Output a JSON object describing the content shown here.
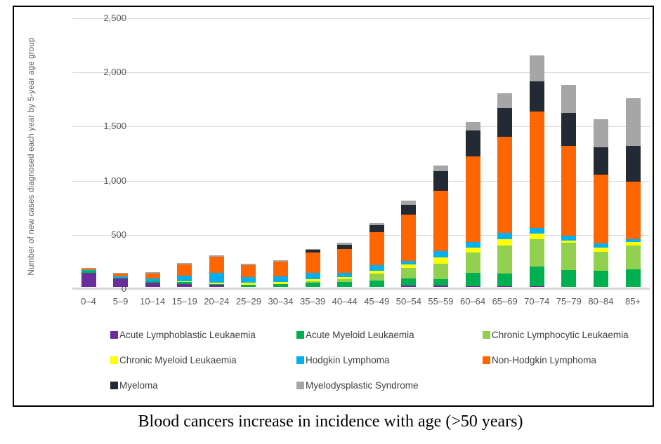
{
  "chart": {
    "y_axis_title": "Number of new cases diagnosed each year by 5-year age group",
    "y_ticks": [
      "0",
      "500",
      "1,000",
      "1,500",
      "2,000",
      "2,500"
    ],
    "caption": "Blood cancers increase in incidence with age (>50 years)"
  },
  "chart_data": {
    "type": "bar",
    "stacked": true,
    "title": "",
    "xlabel": "",
    "ylabel": "Number of new cases diagnosed each year by 5-year age group",
    "ylim": [
      0,
      2500
    ],
    "y_tick_step": 500,
    "grid": true,
    "legend_position": "bottom",
    "categories": [
      "0–4",
      "5–9",
      "10–14",
      "15–19",
      "20–24",
      "25–29",
      "30–34",
      "35–39",
      "40–44",
      "45–49",
      "50–54",
      "55–59",
      "60–64",
      "65–69",
      "70–74",
      "75–79",
      "80–84",
      "85+"
    ],
    "series": [
      {
        "name": "Acute Lymphoblastic Leukaemia",
        "color": "#6A2E9B",
        "values": [
          130,
          80,
          37,
          26,
          17,
          0,
          0,
          0,
          0,
          0,
          11,
          11,
          9,
          9,
          9,
          0,
          0,
          0
        ]
      },
      {
        "name": "Acute Myeloid Leukaemia",
        "color": "#00B050",
        "values": [
          20,
          6,
          15,
          17,
          9,
          21,
          26,
          41,
          45,
          58,
          65,
          58,
          121,
          117,
          182,
          156,
          149,
          162
        ]
      },
      {
        "name": "Chronic Lymphocytic Leukaemia",
        "color": "#92D050",
        "values": [
          0,
          0,
          0,
          0,
          0,
          0,
          0,
          13,
          26,
          65,
          97,
          143,
          190,
          255,
          249,
          253,
          175,
          221
        ]
      },
      {
        "name": "Chronic Myeloid Leukaemia",
        "color": "#FFFF00",
        "values": [
          0,
          0,
          0,
          9,
          13,
          17,
          17,
          17,
          17,
          28,
          32,
          58,
          43,
          58,
          50,
          21,
          41,
          30
        ]
      },
      {
        "name": "Hodgkin Lymphoma",
        "color": "#00B0F0",
        "values": [
          6,
          13,
          24,
          52,
          93,
          52,
          52,
          60,
          43,
          52,
          37,
          58,
          54,
          58,
          52,
          43,
          34,
          26
        ]
      },
      {
        "name": "Non-Hodgkin Lymphoma",
        "color": "#FF6600",
        "values": [
          13,
          26,
          45,
          104,
          145,
          108,
          138,
          186,
          221,
          303,
          424,
          558,
          790,
          887,
          1077,
          826,
          638,
          530
        ]
      },
      {
        "name": "Myeloma",
        "color": "#222B35",
        "values": [
          0,
          0,
          0,
          0,
          0,
          0,
          0,
          26,
          39,
          65,
          93,
          184,
          240,
          271,
          281,
          307,
          249,
          335
        ]
      },
      {
        "name": "Myelodysplastic Syndrome",
        "color": "#A6A6A6",
        "values": [
          4,
          4,
          13,
          13,
          17,
          13,
          13,
          9,
          17,
          17,
          37,
          50,
          76,
          130,
          238,
          260,
          260,
          437
        ]
      }
    ]
  }
}
